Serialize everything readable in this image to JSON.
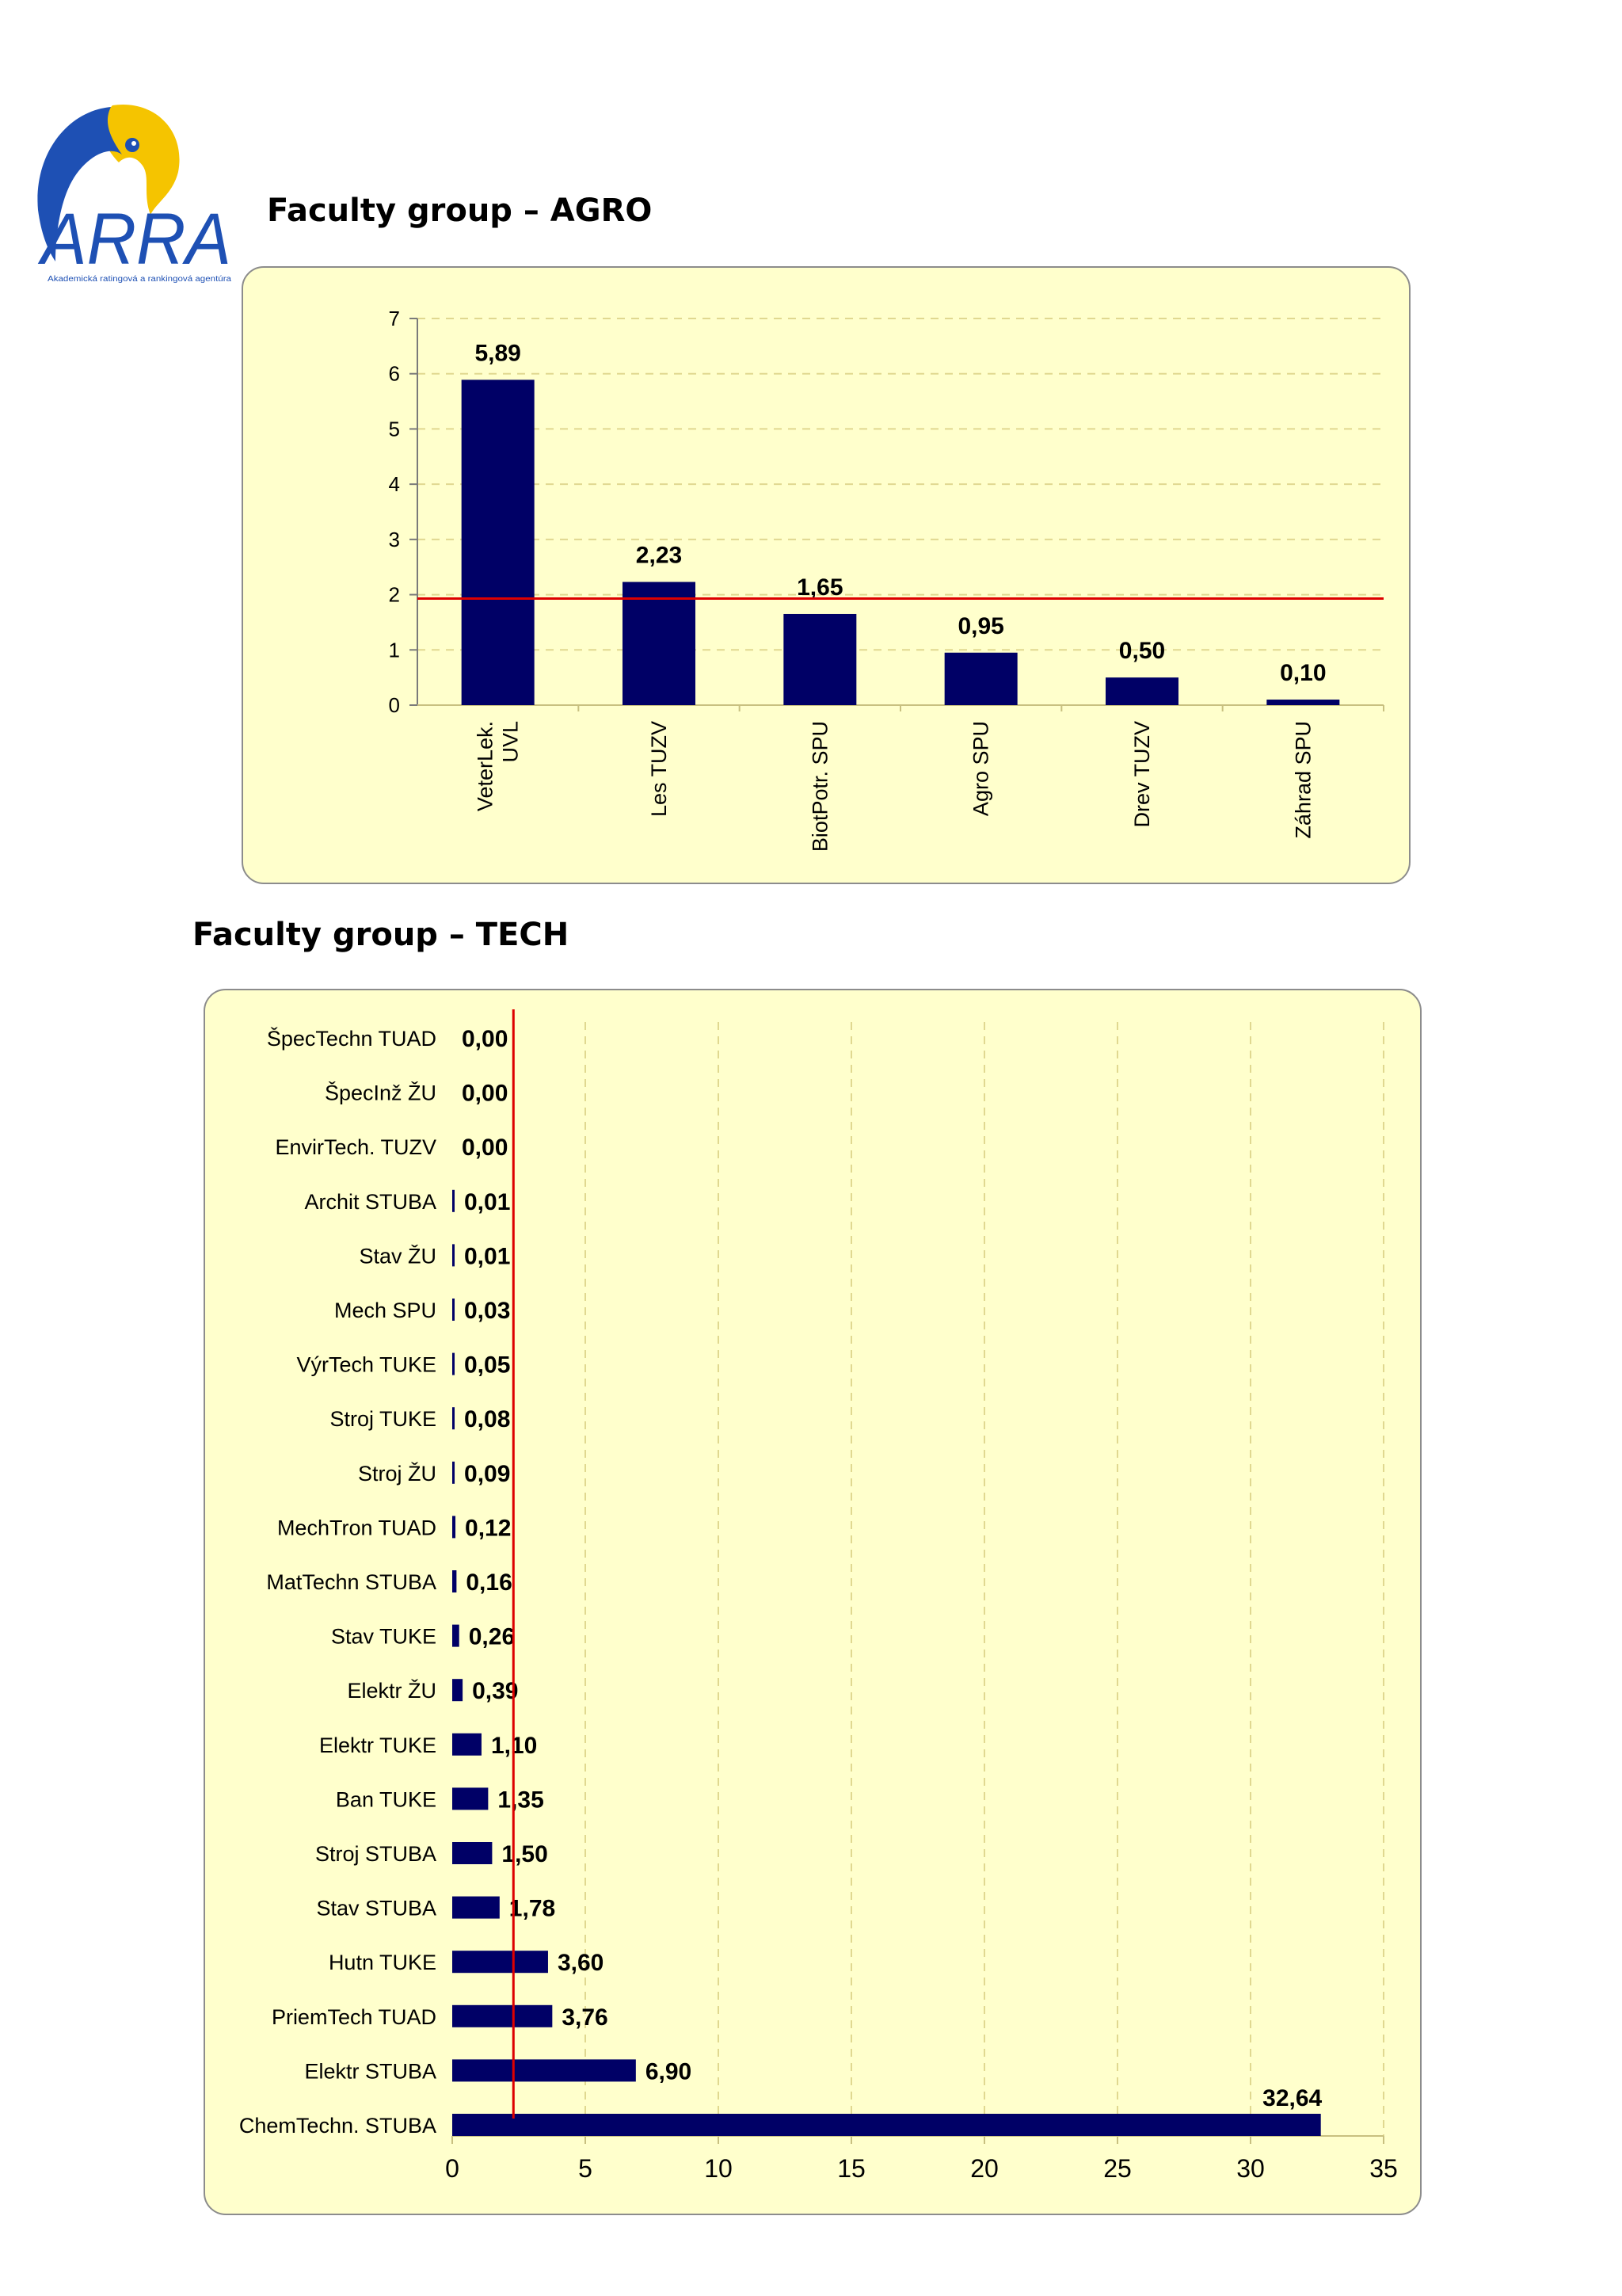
{
  "logo": {
    "brand": "ARRA",
    "tagline": "Akademická ratingová a rankingová agentúra",
    "colors": {
      "blue": "#1e50b4",
      "yellow": "#f5c400"
    }
  },
  "agro_title": "Faculty group – AGRO",
  "tech_title": "Faculty group – TECH",
  "colors": {
    "bar": "#000066",
    "reference_line": "#dd0000",
    "panel_background": "#ffffcc",
    "grid": "#e0d890"
  },
  "chart_data": [
    {
      "type": "bar",
      "orientation": "vertical",
      "categories": [
        "VeterLek.\nUVL",
        "Les TUZV",
        "BiotPotr. SPU",
        "Agro SPU",
        "Drev TUZV",
        "Záhrad SPU"
      ],
      "values": [
        5.89,
        2.23,
        1.65,
        0.95,
        0.5,
        0.1
      ],
      "data_labels": [
        "5,89",
        "2,23",
        "1,65",
        "0,95",
        "0,50",
        "0,10"
      ],
      "ylim": [
        0,
        7
      ],
      "yticks": [
        "0",
        "1",
        "2",
        "3",
        "4",
        "5",
        "6",
        "7"
      ],
      "reference_line": 1.93,
      "grid": true,
      "legend": "none"
    },
    {
      "type": "bar",
      "orientation": "horizontal",
      "categories": [
        "ŠpecTechn TUAD",
        "ŠpecInž ŽU",
        "EnvirTech. TUZV",
        "Archit STUBA",
        "Stav ŽU",
        "Mech SPU",
        "VýrTech TUKE",
        "Stroj TUKE",
        "Stroj ŽU",
        "MechTron TUAD",
        "MatTechn STUBA",
        "Stav TUKE",
        "Elektr ŽU",
        "Elektr TUKE",
        "Ban TUKE",
        "Stroj STUBA",
        "Stav STUBA",
        "Hutn TUKE",
        "PriemTech TUAD",
        "Elektr STUBA",
        "ChemTechn. STUBA"
      ],
      "values": [
        0.0,
        0.0,
        0.0,
        0.01,
        0.01,
        0.03,
        0.05,
        0.08,
        0.09,
        0.12,
        0.16,
        0.26,
        0.39,
        1.1,
        1.35,
        1.5,
        1.78,
        3.6,
        3.76,
        6.9,
        32.64
      ],
      "data_labels": [
        "0,00",
        "0,00",
        "0,00",
        "0,01",
        "0,01",
        "0,03",
        "0,05",
        "0,08",
        "0,09",
        "0,12",
        "0,16",
        "0,26",
        "0,39",
        "1,10",
        "1,35",
        "1,50",
        "1,78",
        "3,60",
        "3,76",
        "6,90",
        "32,64"
      ],
      "xlim": [
        0,
        35
      ],
      "xticks": [
        "0",
        "5",
        "10",
        "15",
        "20",
        "25",
        "30",
        "35"
      ],
      "reference_line": 2.3,
      "grid": true,
      "legend": "none"
    }
  ]
}
